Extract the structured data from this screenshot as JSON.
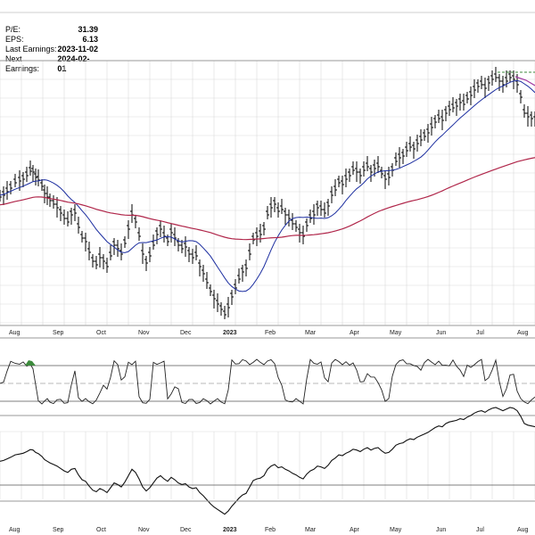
{
  "info": {
    "pe_label": "P/E:",
    "pe_value": "31.39",
    "eps_label": "EPS:",
    "eps_value": "6.13",
    "last_label": "Last Earnings:",
    "last_value": "2023-11-02",
    "next_label": "Next Earnings:",
    "next_value": "2024-02-01"
  },
  "colors": {
    "price": "#000000",
    "ma50": "#1c2ea0",
    "ma200": "#b0264a",
    "ma_short": "#a03aa0",
    "overbought": "#3c8a3c",
    "grid": "#d9d9d9"
  },
  "chart_data": [
    {
      "type": "ohlc",
      "x_tick_labels": [
        "Aug",
        "Sep",
        "Oct",
        "Nov",
        "Dec",
        "2023",
        "Feb",
        "Mar",
        "Apr",
        "May",
        "Jun",
        "Jul",
        "Aug"
      ],
      "series": [
        {
          "points": [
            [
              0,
              6
            ],
            [
              4,
              8
            ],
            [
              8,
              12
            ],
            [
              12,
              16
            ],
            [
              17,
              22
            ],
            [
              22,
              24
            ],
            [
              26,
              26
            ],
            [
              30,
              30
            ],
            [
              34,
              35
            ],
            [
              37,
              34
            ],
            [
              40,
              28
            ],
            [
              43,
              25
            ],
            [
              47,
              18
            ],
            [
              50,
              10
            ],
            [
              53,
              6
            ],
            [
              56,
              2
            ],
            [
              60,
              -2
            ],
            [
              64,
              -6
            ],
            [
              68,
              -12
            ],
            [
              72,
              -18
            ],
            [
              76,
              -22
            ],
            [
              80,
              -14
            ],
            [
              84,
              -12
            ],
            [
              88,
              -28
            ],
            [
              92,
              -40
            ],
            [
              96,
              -44
            ],
            [
              100,
              -56
            ],
            [
              104,
              -66
            ],
            [
              108,
              -70
            ],
            [
              112,
              -62
            ],
            [
              116,
              -66
            ],
            [
              120,
              -72
            ],
            [
              124,
              -60
            ],
            [
              128,
              -48
            ],
            [
              132,
              -52
            ],
            [
              136,
              -58
            ],
            [
              140,
              -46
            ],
            [
              144,
              -30
            ],
            [
              148,
              -14
            ],
            [
              152,
              -22
            ],
            [
              156,
              -38
            ],
            [
              160,
              -58
            ],
            [
              164,
              -68
            ],
            [
              168,
              -60
            ],
            [
              172,
              -48
            ],
            [
              176,
              -36
            ],
            [
              180,
              -30
            ],
            [
              184,
              -38
            ],
            [
              188,
              -44
            ],
            [
              192,
              -34
            ],
            [
              196,
              -40
            ],
            [
              200,
              -48
            ],
            [
              204,
              -52
            ],
            [
              208,
              -50
            ],
            [
              212,
              -58
            ],
            [
              216,
              -62
            ],
            [
              220,
              -60
            ],
            [
              224,
              -72
            ],
            [
              228,
              -80
            ],
            [
              232,
              -90
            ],
            [
              236,
              -100
            ],
            [
              240,
              -108
            ],
            [
              244,
              -114
            ],
            [
              248,
              -120
            ],
            [
              252,
              -126
            ],
            [
              256,
              -118
            ],
            [
              260,
              -106
            ],
            [
              264,
              -96
            ],
            [
              268,
              -86
            ],
            [
              272,
              -78
            ],
            [
              276,
              -74
            ],
            [
              280,
              -58
            ],
            [
              284,
              -42
            ],
            [
              288,
              -38
            ],
            [
              292,
              -36
            ],
            [
              296,
              -30
            ],
            [
              300,
              -14
            ],
            [
              304,
              -6
            ],
            [
              308,
              -2
            ],
            [
              312,
              -10
            ],
            [
              316,
              -8
            ],
            [
              320,
              -14
            ],
            [
              324,
              -18
            ],
            [
              328,
              -24
            ],
            [
              332,
              -28
            ],
            [
              336,
              -34
            ],
            [
              340,
              -38
            ],
            [
              344,
              -26
            ],
            [
              348,
              -18
            ],
            [
              352,
              -14
            ],
            [
              356,
              -6
            ],
            [
              360,
              -8
            ],
            [
              364,
              -12
            ],
            [
              368,
              -4
            ],
            [
              372,
              8
            ],
            [
              376,
              14
            ],
            [
              380,
              22
            ],
            [
              384,
              20
            ],
            [
              388,
              26
            ],
            [
              392,
              30
            ],
            [
              396,
              36
            ],
            [
              400,
              34
            ],
            [
              404,
              30
            ],
            [
              408,
              36
            ],
            [
              412,
              40
            ],
            [
              416,
              34
            ],
            [
              420,
              38
            ],
            [
              424,
              40
            ],
            [
              428,
              32
            ],
            [
              432,
              26
            ],
            [
              436,
              28
            ],
            [
              440,
              36
            ],
            [
              444,
              46
            ],
            [
              448,
              50
            ],
            [
              452,
              52
            ],
            [
              456,
              58
            ],
            [
              460,
              62
            ],
            [
              464,
              60
            ],
            [
              468,
              66
            ],
            [
              472,
              70
            ],
            [
              476,
              74
            ],
            [
              480,
              78
            ],
            [
              484,
              84
            ],
            [
              488,
              90
            ],
            [
              492,
              94
            ],
            [
              496,
              92
            ],
            [
              500,
              100
            ],
            [
              504,
              104
            ],
            [
              508,
              106
            ],
            [
              512,
              108
            ],
            [
              516,
              112
            ],
            [
              520,
              110
            ],
            [
              524,
              116
            ],
            [
              528,
              120
            ],
            [
              532,
              126
            ],
            [
              536,
              130
            ],
            [
              540,
              132
            ],
            [
              544,
              128
            ],
            [
              548,
              134
            ],
            [
              552,
              138
            ],
            [
              556,
              140
            ],
            [
              560,
              136
            ],
            [
              564,
              132
            ],
            [
              568,
              136
            ],
            [
              572,
              140
            ],
            [
              576,
              138
            ],
            [
              580,
              132
            ],
            [
              584,
              118
            ],
            [
              588,
              100
            ],
            [
              592,
              96
            ],
            [
              596,
              94
            ],
            [
              600,
              92
            ]
          ]
        }
      ]
    }
  ]
}
